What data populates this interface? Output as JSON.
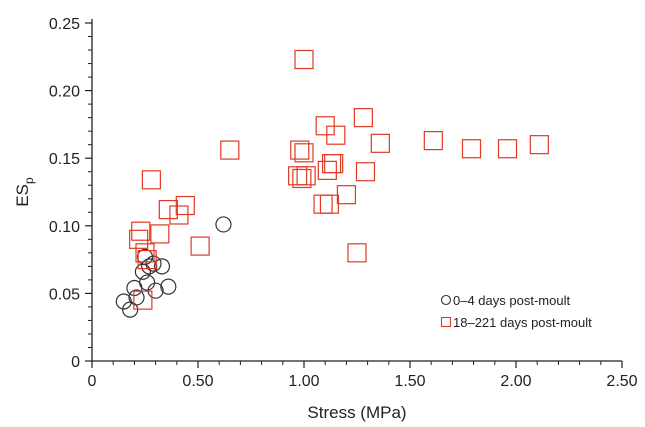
{
  "chart_data": {
    "type": "scatter",
    "title": "",
    "xlabel": "Stress (MPa)",
    "ylabel_main": "ES",
    "ylabel_sub": "p",
    "xlim": [
      0,
      2.5
    ],
    "ylim": [
      0,
      0.25
    ],
    "x_ticks": [
      {
        "value": 0,
        "label": "0"
      },
      {
        "value": 0.5,
        "label": "0.50"
      },
      {
        "value": 1.0,
        "label": "1.00"
      },
      {
        "value": 1.5,
        "label": "1.50"
      },
      {
        "value": 2.0,
        "label": "2.00"
      },
      {
        "value": 2.5,
        "label": "2.50"
      }
    ],
    "y_ticks": [
      {
        "value": 0,
        "label": "0"
      },
      {
        "value": 0.05,
        "label": "0.05"
      },
      {
        "value": 0.1,
        "label": "0.10"
      },
      {
        "value": 0.15,
        "label": "0.15"
      },
      {
        "value": 0.2,
        "label": "0.20"
      },
      {
        "value": 0.25,
        "label": "0.25"
      }
    ],
    "legend_position": "bottom-right",
    "series": [
      {
        "name": "0–4 days post-moult",
        "marker": "circle",
        "color": "#333333",
        "points": [
          [
            0.15,
            0.044
          ],
          [
            0.18,
            0.038
          ],
          [
            0.2,
            0.054
          ],
          [
            0.21,
            0.047
          ],
          [
            0.24,
            0.066
          ],
          [
            0.25,
            0.077
          ],
          [
            0.26,
            0.058
          ],
          [
            0.27,
            0.07
          ],
          [
            0.29,
            0.072
          ],
          [
            0.3,
            0.052
          ],
          [
            0.33,
            0.07
          ],
          [
            0.36,
            0.055
          ],
          [
            0.62,
            0.101
          ]
        ]
      },
      {
        "name": "18–221 days post-moult",
        "marker": "square",
        "color": "#e03a24",
        "points": [
          [
            0.22,
            0.09
          ],
          [
            0.23,
            0.096
          ],
          [
            0.24,
            0.045
          ],
          [
            0.25,
            0.08
          ],
          [
            0.26,
            0.075
          ],
          [
            0.28,
            0.134
          ],
          [
            0.32,
            0.094
          ],
          [
            0.36,
            0.112
          ],
          [
            0.41,
            0.108
          ],
          [
            0.44,
            0.115
          ],
          [
            0.51,
            0.085
          ],
          [
            0.65,
            0.156
          ],
          [
            0.97,
            0.137
          ],
          [
            0.98,
            0.156
          ],
          [
            0.99,
            0.135
          ],
          [
            1.0,
            0.154
          ],
          [
            1.0,
            0.223
          ],
          [
            1.01,
            0.137
          ],
          [
            1.09,
            0.116
          ],
          [
            1.1,
            0.174
          ],
          [
            1.11,
            0.141
          ],
          [
            1.12,
            0.116
          ],
          [
            1.13,
            0.146
          ],
          [
            1.14,
            0.146
          ],
          [
            1.15,
            0.167
          ],
          [
            1.2,
            0.123
          ],
          [
            1.25,
            0.08
          ],
          [
            1.28,
            0.18
          ],
          [
            1.29,
            0.14
          ],
          [
            1.36,
            0.161
          ],
          [
            1.61,
            0.163
          ],
          [
            1.79,
            0.157
          ],
          [
            1.96,
            0.157
          ],
          [
            2.11,
            0.16
          ]
        ]
      }
    ]
  }
}
